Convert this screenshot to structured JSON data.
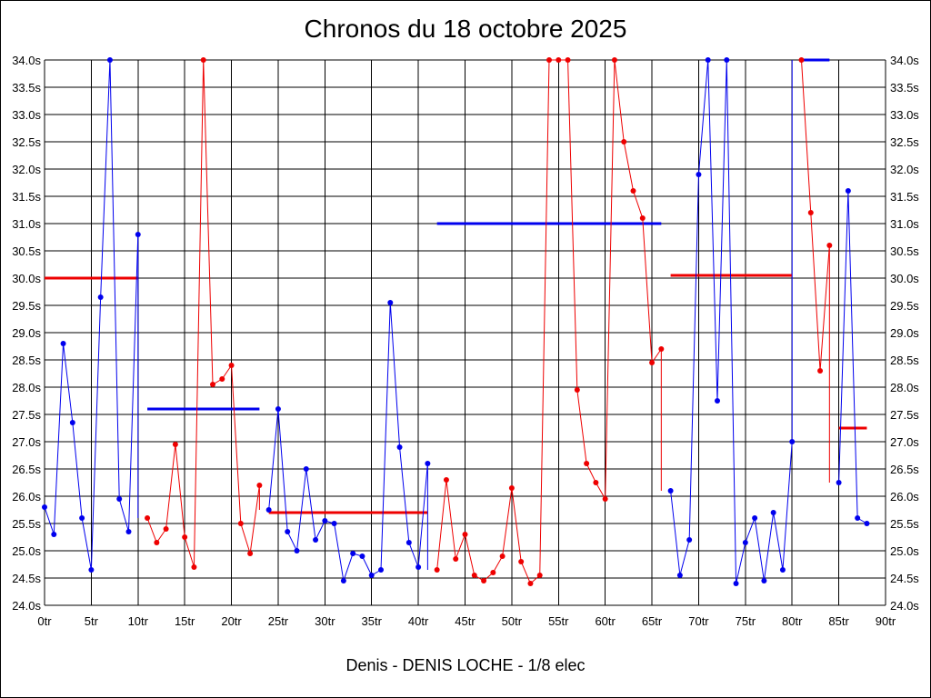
{
  "chart_data": {
    "type": "line",
    "title": "Chronos du 18 octobre 2025",
    "footer": "Denis - DENIS LOCHE - 1/8 elec",
    "xlim": [
      0,
      90
    ],
    "ylim": [
      24.0,
      34.0
    ],
    "x_ticks": [
      "0tr",
      "5tr",
      "10tr",
      "15tr",
      "20tr",
      "25tr",
      "30tr",
      "35tr",
      "40tr",
      "45tr",
      "50tr",
      "55tr",
      "60tr",
      "65tr",
      "70tr",
      "75tr",
      "80tr",
      "85tr",
      "90tr"
    ],
    "y_ticks": [
      "24.0s",
      "24.5s",
      "25.0s",
      "25.5s",
      "26.0s",
      "26.5s",
      "27.0s",
      "27.5s",
      "28.0s",
      "28.5s",
      "29.0s",
      "29.5s",
      "30.0s",
      "30.5s",
      "31.0s",
      "31.5s",
      "32.0s",
      "32.5s",
      "33.0s",
      "33.5s",
      "34.0s"
    ],
    "grid": true,
    "colors": {
      "blue": "#0000ee",
      "red": "#ee0000",
      "grid": "#000000"
    },
    "series": [
      {
        "color": "blue",
        "x": [
          0,
          1,
          2,
          3,
          4,
          5,
          6,
          7,
          8,
          9,
          10
        ],
        "y": [
          25.8,
          25.3,
          28.8,
          27.35,
          25.6,
          24.65,
          29.65,
          34.0,
          25.95,
          25.35,
          30.8
        ]
      },
      {
        "color": "red",
        "x": [
          11,
          12,
          13,
          14,
          15,
          16,
          17,
          18,
          19,
          20,
          21,
          22,
          23
        ],
        "y": [
          25.6,
          25.15,
          25.4,
          26.95,
          25.25,
          24.7,
          34.0,
          28.05,
          28.15,
          28.4,
          25.5,
          24.95,
          26.2
        ]
      },
      {
        "color": "blue",
        "x": [
          24,
          25,
          26,
          27,
          28,
          29,
          30,
          31,
          32,
          33,
          34,
          35,
          36,
          37,
          38,
          39,
          40,
          41
        ],
        "y": [
          25.75,
          27.6,
          25.35,
          25.0,
          26.5,
          25.2,
          25.55,
          25.5,
          24.45,
          24.95,
          24.9,
          24.55,
          24.65,
          29.55,
          26.9,
          25.15,
          24.7,
          26.6
        ]
      },
      {
        "color": "red",
        "x": [
          42,
          43,
          44,
          45,
          46,
          47,
          48,
          49,
          50,
          51,
          52,
          53,
          54,
          55,
          56,
          57,
          58,
          59,
          60,
          61,
          62,
          63,
          64,
          65,
          66
        ],
        "y": [
          24.65,
          26.3,
          24.85,
          25.3,
          24.55,
          24.45,
          24.6,
          24.9,
          26.15,
          24.8,
          24.4,
          24.55,
          34.0,
          34.0,
          34.0,
          27.95,
          26.6,
          26.25,
          25.95,
          34.0,
          32.5,
          31.6,
          31.1,
          28.45,
          28.7
        ]
      },
      {
        "color": "blue",
        "x": [
          67,
          68,
          69,
          70,
          71,
          72,
          73,
          74,
          75,
          76,
          77,
          78,
          79,
          80
        ],
        "y": [
          26.1,
          24.55,
          25.2,
          31.9,
          34.0,
          27.75,
          34.0,
          24.4,
          25.15,
          25.6,
          24.45,
          25.7,
          24.65,
          27.0
        ]
      },
      {
        "color": "red",
        "x": [
          81,
          82,
          83,
          84
        ],
        "y": [
          34.0,
          31.2,
          28.3,
          30.6
        ]
      },
      {
        "color": "blue",
        "x": [
          85,
          86,
          87,
          88
        ],
        "y": [
          26.25,
          31.6,
          25.6,
          25.5
        ]
      }
    ],
    "averages": [
      {
        "color": "red",
        "x": [
          0,
          10
        ],
        "y": 30.0
      },
      {
        "color": "blue",
        "x": [
          11,
          23
        ],
        "y": 27.6
      },
      {
        "color": "red",
        "x": [
          24,
          41
        ],
        "y": 25.7
      },
      {
        "color": "blue",
        "x": [
          42,
          66
        ],
        "y": 31.0
      },
      {
        "color": "red",
        "x": [
          67,
          80
        ],
        "y": 30.05
      },
      {
        "color": "blue",
        "x": [
          81,
          84
        ],
        "y": 34.0
      },
      {
        "color": "red",
        "x": [
          85,
          88
        ],
        "y": 27.25
      }
    ]
  }
}
